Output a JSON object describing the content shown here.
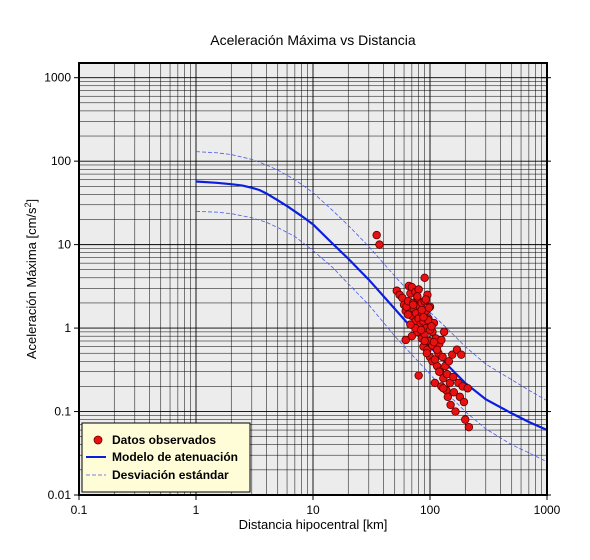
{
  "chart_data": {
    "type": "scatter",
    "title": "Aceleración Máxima vs Distancia",
    "xlabel": "Distancia hipocentral [km]",
    "ylabel_prefix": "Aceleración Máxima [cm/s",
    "ylabel_sup": "2",
    "ylabel_suffix": "]",
    "x_scale": "log",
    "y_scale": "log",
    "xlim": [
      0.1,
      1000
    ],
    "ylim": [
      0.01,
      1500
    ],
    "x_ticks": [
      0.1,
      1,
      10,
      100,
      1000
    ],
    "x_tick_labels": [
      "0.1",
      "1",
      "10",
      "100",
      "1000"
    ],
    "y_ticks": [
      0.01,
      0.1,
      1,
      10,
      100,
      1000
    ],
    "y_tick_labels": [
      "0.01",
      "0.1",
      "1",
      "10",
      "100",
      "1000"
    ],
    "grid": true,
    "legend_position": "bottom-left",
    "legend": [
      {
        "label": "Datos observados",
        "marker": "circle",
        "color": "#e81010"
      },
      {
        "label": "Modelo de atenuación",
        "marker": "line",
        "color": "#0a1ee0"
      },
      {
        "label": "Desviación estándar",
        "marker": "dashed",
        "color": "#4a5ae8"
      }
    ],
    "series": [
      {
        "name": "Datos observados",
        "kind": "points",
        "color": "#e81010",
        "x": [
          35,
          37,
          52,
          55,
          58,
          60,
          62,
          63,
          65,
          66,
          68,
          70,
          70,
          72,
          73,
          75,
          75,
          76,
          78,
          78,
          80,
          80,
          82,
          83,
          85,
          85,
          86,
          88,
          88,
          90,
          90,
          90,
          92,
          93,
          95,
          95,
          97,
          98,
          100,
          100,
          102,
          105,
          105,
          108,
          110,
          110,
          112,
          115,
          118,
          120,
          122,
          125,
          128,
          130,
          132,
          135,
          138,
          140,
          142,
          145,
          148,
          150,
          155,
          158,
          160,
          165,
          170,
          175,
          180,
          185,
          190,
          195,
          200,
          210,
          215,
          65,
          70,
          75,
          80,
          85,
          90,
          92,
          96,
          100,
          105,
          110,
          115,
          120,
          125,
          130,
          62,
          68,
          72,
          78,
          84,
          88,
          94,
          98,
          103,
          108
        ],
        "y": [
          13,
          10,
          2.8,
          2.5,
          2.3,
          1.9,
          1.6,
          1.8,
          2.1,
          3.2,
          2.6,
          3.1,
          1.4,
          2.0,
          1.7,
          2.7,
          1.2,
          1.5,
          2.3,
          0.9,
          2.9,
          1.3,
          1.8,
          1.1,
          2.0,
          0.75,
          1.5,
          1.2,
          0.6,
          4.0,
          2.1,
          0.85,
          1.6,
          1.0,
          2.5,
          0.55,
          1.3,
          0.7,
          1.8,
          0.45,
          1.1,
          0.9,
          0.4,
          1.15,
          0.6,
          0.22,
          0.75,
          0.35,
          0.5,
          0.65,
          0.3,
          0.2,
          0.45,
          0.25,
          0.9,
          0.35,
          0.18,
          0.28,
          0.15,
          0.4,
          0.22,
          0.12,
          0.48,
          0.26,
          0.17,
          0.1,
          0.55,
          0.22,
          0.15,
          0.48,
          0.2,
          0.13,
          0.08,
          0.19,
          0.065,
          1.45,
          0.8,
          1.0,
          0.27,
          1.65,
          0.7,
          2.2,
          1.25,
          0.95,
          0.62,
          0.42,
          0.55,
          0.3,
          0.72,
          0.19,
          0.72,
          1.1,
          1.9,
          2.4,
          0.95,
          1.35,
          0.5,
          1.75,
          1.05,
          0.68
        ]
      },
      {
        "name": "Modelo de atenuación",
        "kind": "line",
        "color": "#0a1ee0",
        "x": [
          1,
          1.5,
          2,
          2.5,
          3,
          3.5,
          4,
          5,
          6,
          7,
          8,
          10,
          15,
          20,
          30,
          50,
          70,
          100,
          150,
          200,
          300,
          500,
          700,
          1000
        ],
        "y": [
          57,
          55,
          53,
          51,
          48,
          45,
          41,
          34,
          29,
          25,
          22,
          17.5,
          10,
          6.8,
          3.8,
          1.7,
          1.0,
          0.6,
          0.33,
          0.22,
          0.14,
          0.095,
          0.075,
          0.06
        ]
      },
      {
        "name": "Desviación estándar (superior)",
        "kind": "dashed",
        "color": "#4a5ae8",
        "x": [
          1,
          1.5,
          2,
          3,
          4,
          5,
          7,
          10,
          15,
          20,
          30,
          50,
          70,
          100,
          150,
          200,
          300,
          500,
          700,
          1000
        ],
        "y": [
          130,
          126,
          120,
          105,
          90,
          78,
          60,
          42,
          25,
          17,
          9.5,
          4.2,
          2.5,
          1.55,
          0.9,
          0.6,
          0.37,
          0.24,
          0.18,
          0.135
        ]
      },
      {
        "name": "Desviación estándar (inferior)",
        "kind": "dashed",
        "color": "#4a5ae8",
        "x": [
          1,
          1.5,
          2,
          3,
          4,
          5,
          7,
          10,
          15,
          20,
          30,
          50,
          70,
          100,
          150,
          200,
          300,
          500,
          700,
          1000
        ],
        "y": [
          25,
          24.5,
          23.5,
          21,
          18.5,
          16,
          12.5,
          8.5,
          5.2,
          3.4,
          1.9,
          0.8,
          0.48,
          0.28,
          0.15,
          0.1,
          0.062,
          0.04,
          0.032,
          0.025
        ]
      }
    ]
  }
}
